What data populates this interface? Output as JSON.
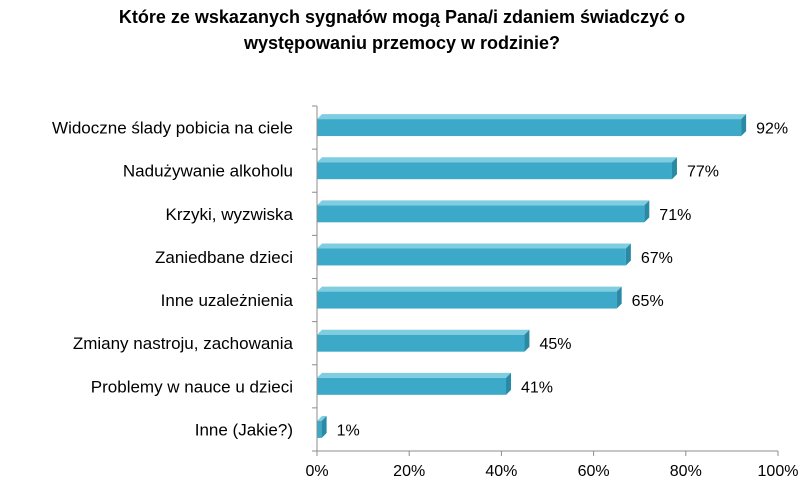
{
  "chart_data": {
    "type": "bar",
    "orientation": "horizontal",
    "title_lines": [
      "Które ze wskazanych sygnałów mogą Pana/i zdaniem świadczyć o",
      "występowaniu przemocy w rodzinie?"
    ],
    "categories": [
      "Widoczne ślady pobicia na ciele",
      "Nadużywanie alkoholu",
      "Krzyki, wyzwiska",
      "Zaniedbane dzieci",
      "Inne uzależnienia",
      "Zmiany nastroju, zachowania",
      "Problemy w nauce u dzieci",
      "Inne (Jakie?)"
    ],
    "values": [
      92,
      77,
      71,
      67,
      65,
      45,
      41,
      1
    ],
    "data_labels": [
      "92%",
      "77%",
      "71%",
      "67%",
      "65%",
      "45%",
      "41%",
      "1%"
    ],
    "xlim": [
      0,
      100
    ],
    "x_ticks": [
      0,
      20,
      40,
      60,
      80,
      100
    ],
    "x_tick_labels": [
      "0%",
      "20%",
      "40%",
      "60%",
      "80%",
      "100%"
    ],
    "grid": false,
    "legend": "none",
    "colors": {
      "bar": "#3CA9C8",
      "bar_top": "#7FCDE0",
      "bar_side": "#2A8AA6",
      "axis": "#8C8C8C",
      "text": "#000000"
    }
  }
}
